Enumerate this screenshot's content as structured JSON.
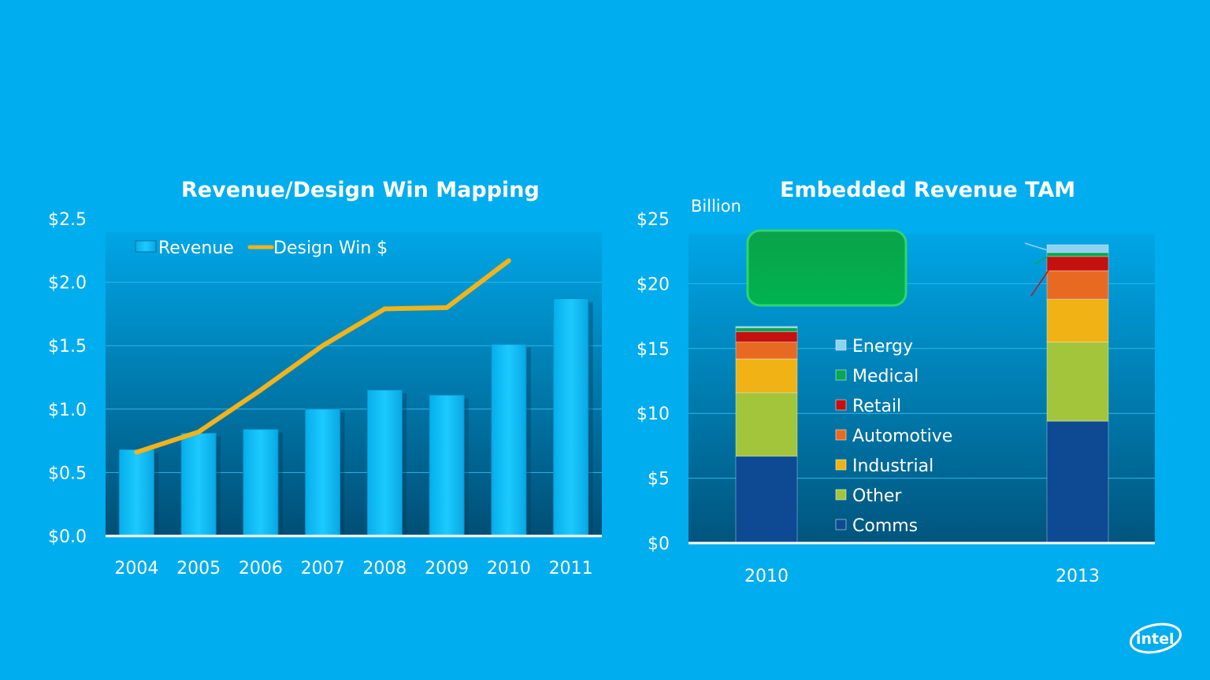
{
  "chart_data": [
    {
      "type": "bar",
      "title": "Revenue/Design Win Mapping",
      "categories": [
        "2004",
        "2005",
        "2006",
        "2007",
        "2008",
        "2009",
        "2010",
        "2011"
      ],
      "y_tick_labels": [
        "$0.0",
        "$0.5",
        "$1.0",
        "$1.5",
        "$2.0",
        "$2.5"
      ],
      "ylim": [
        0,
        2.5
      ],
      "series": [
        {
          "name": "Revenue",
          "kind": "bar",
          "values": [
            0.68,
            0.81,
            0.84,
            1.0,
            1.15,
            1.11,
            1.51,
            1.87
          ]
        },
        {
          "name": "Design Win $",
          "kind": "line",
          "values": [
            0.66,
            0.82,
            1.15,
            1.5,
            1.79,
            1.8,
            2.17,
            null
          ]
        }
      ],
      "legend_position": "top-left",
      "colors": {
        "bar": "#12c4ff",
        "line": "#f2b31b"
      }
    },
    {
      "type": "bar",
      "stacked": true,
      "title": "Embedded Revenue TAM",
      "ylabel": "Billion",
      "categories": [
        "2010",
        "2013"
      ],
      "y_tick_labels": [
        "$0",
        "$5",
        "$10",
        "$15",
        "$20",
        "$25"
      ],
      "ylim": [
        0,
        25
      ],
      "series": [
        {
          "name": "Comms",
          "values": [
            6.7,
            9.4
          ],
          "color": "#0d4a93"
        },
        {
          "name": "Other",
          "values": [
            4.9,
            6.1
          ],
          "color": "#a3c53b"
        },
        {
          "name": "Industrial",
          "values": [
            2.6,
            3.3
          ],
          "color": "#f0b215"
        },
        {
          "name": "Automotive",
          "values": [
            1.3,
            2.2
          ],
          "color": "#e86a22"
        },
        {
          "name": "Retail",
          "values": [
            0.8,
            1.1
          ],
          "color": "#c4100f"
        },
        {
          "name": "Medical",
          "values": [
            0.3,
            0.3
          ],
          "color": "#0aa653"
        },
        {
          "name": "Energy",
          "values": [
            0.1,
            0.6
          ],
          "color": "#8fd2f2"
        }
      ],
      "legend_position": "center"
    }
  ],
  "logo": {
    "text": "intel"
  }
}
